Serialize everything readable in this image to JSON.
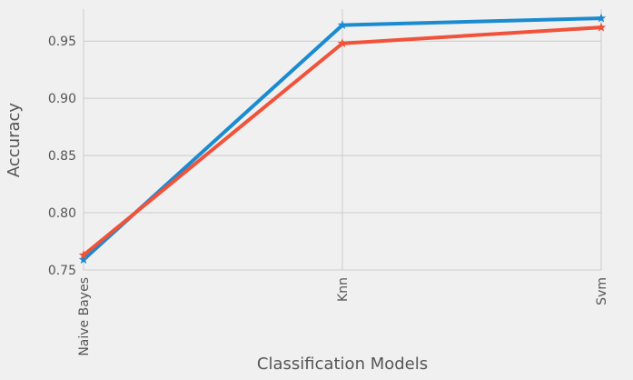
{
  "chart_data": {
    "type": "line",
    "title": "",
    "xlabel": "Classification Models",
    "ylabel": "Accuracy",
    "categories": [
      "Naive Bayes",
      "Knn",
      "Svm"
    ],
    "ylim": [
      0.75,
      0.978
    ],
    "yticks": [
      0.75,
      0.8,
      0.85,
      0.9,
      0.95
    ],
    "ytick_labels": [
      "0.75",
      "0.80",
      "0.85",
      "0.90",
      "0.95"
    ],
    "grid": true,
    "legend": "none",
    "marker": "star",
    "series": [
      {
        "color": "#1b8bd1",
        "values": [
          0.759,
          0.964,
          0.97
        ]
      },
      {
        "color": "#f0523a",
        "values": [
          0.763,
          0.948,
          0.962
        ]
      }
    ],
    "background": "#f0f0f0",
    "grid_color": "#cbcbcb"
  }
}
